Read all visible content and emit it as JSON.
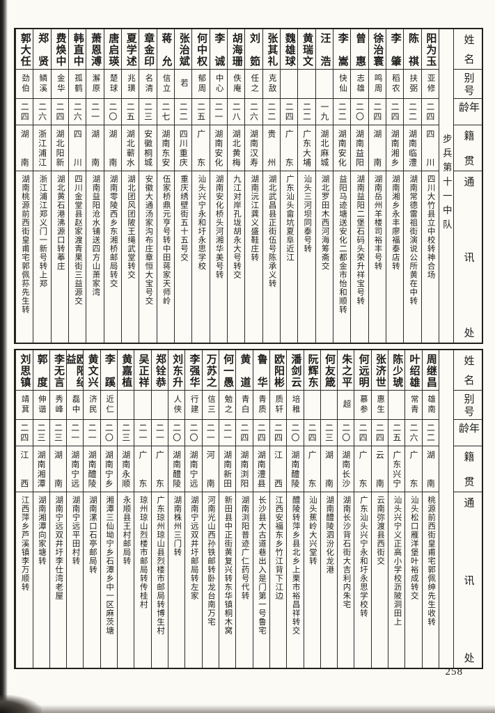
{
  "page": {
    "number": "258"
  },
  "colors": {
    "ink": "#1d1d1d",
    "paper": "#fbfaf5",
    "rule": "#2b2923"
  },
  "row_headers": {
    "name": "姓名",
    "alias": "别号",
    "age": "年龄",
    "native": "籍贯",
    "address": "通讯处"
  },
  "tables": [
    {
      "unit": "步兵第十一中队",
      "people": [
        {
          "name": "阳为玉",
          "alias": "亚修",
          "age": "二四",
          "native": "四川",
          "address": "四川大竹县立中校转神合场"
        },
        {
          "name": "陈祺",
          "alias": "扶弼",
          "age": "二二",
          "native": "湖南临澧",
          "address": "湖南常德雷祖街演说公所黄在中转"
        },
        {
          "name": "李肇",
          "alias": "稻农",
          "age": "二四",
          "native": "湖南湘乡",
          "address": "湖南湘乡永丰廖福泰店转"
        },
        {
          "name": "徐治寰",
          "alias": "鸣周",
          "age": "二四",
          "native": "湖南",
          "address": "湖南岳州羊楼司裕丰号转"
        },
        {
          "name": "曾惠",
          "alias": "志雄",
          "age": "二〇",
          "native": "湖南益阳",
          "address": "湖南益阳二堡石码头荣升祥宝号转"
        },
        {
          "name": "李嵩",
          "alias": "快仙",
          "age": "二二",
          "native": "湖南安化",
          "address": "益阳马迹塘送安化二都金市怡和顺转"
        },
        {
          "name": "汪浩",
          "alias": "",
          "age": "一九",
          "native": "湖北麻城",
          "address": "湖北罗田木西河海筹斋交"
        },
        {
          "name": "黄瑞文",
          "alias": "",
          "age": "二二",
          "native": "广东大埔",
          "address": "汕头三河坝同泰号转"
        },
        {
          "name": "魏雄球",
          "alias": "",
          "age": "二四",
          "native": "广东",
          "address": "广东汕头畲坑夏阜近江"
        },
        {
          "name": "张其礼",
          "alias": "克敌",
          "age": "二二",
          "native": "贵州",
          "address": "湖北武昌县正街伍号陈承义转"
        },
        {
          "name": "刘筎",
          "alias": "任之",
          "age": "二六",
          "native": "湖南汉寿",
          "address": "湖南沅江龚义盛鞋庄转"
        },
        {
          "name": "胡海珊",
          "alias": "佚庵",
          "age": "二八",
          "native": "湖北黄梅",
          "address": "九江对岸孔垅胡永大号转交"
        },
        {
          "name": "李诚",
          "alias": "中心",
          "age": "二一",
          "native": "湖南安化",
          "address": "湖南安化桥头河湘华美号转"
        },
        {
          "name": "何中权",
          "alias": "郁周",
          "age": "二五",
          "native": "广东",
          "address": "汕头兴宁永和圩永思学校"
        },
        {
          "name": "张治斌",
          "alias": "若",
          "age": "二二",
          "native": "四川重庆",
          "address": "重庆绣壁街五十五号交"
        },
        {
          "name": "蒋允",
          "alias": "信立",
          "age": "二七",
          "native": "湖南东安",
          "address": "伍家桥鼎元亨号转中田蒋家天师岭"
        },
        {
          "name": "章金印",
          "alias": "名清",
          "age": "二三",
          "native": "安徽桐城",
          "address": "安徽大通汤家沟布庄章恒大宝号交"
        },
        {
          "name": "夏学述",
          "alias": "兆璜",
          "age": "二五",
          "native": "湖北蕲水",
          "address": "湖北团风团陂王绳武堂转交"
        },
        {
          "name": "唐启瑛",
          "alias": "楚球",
          "age": "二〇",
          "native": "湖南",
          "address": "湖南零陵西乡东湘桥邮局转交"
        },
        {
          "name": "萧恩溥",
          "alias": "澥原",
          "age": "二一",
          "native": "湖南",
          "address": "湖南益阳沧水铺送四方山萧家湾"
        },
        {
          "name": "韩直中",
          "alias": "孤鹤",
          "age": "二六",
          "native": "四川",
          "address": "四川金堂县赵家渡青果街三益源交"
        },
        {
          "name": "费焕中",
          "alias": "金华",
          "age": "二四",
          "native": "湖北阳新",
          "address": "湖北黄石港沸源口转菶庄"
        },
        {
          "name": "郑贤",
          "alias": "鳞溪",
          "age": "二六",
          "native": "浙江浦江",
          "address": "浙江浦江郑义门一新号转上郑"
        },
        {
          "name": "郭大任",
          "alias": "劲伯",
          "age": "二四",
          "native": "湖南",
          "address": "湖南桃源前西街皇甫宅郭佩荪先生转"
        }
      ]
    },
    {
      "unit": "",
      "people": [
        {
          "name": "周继昌",
          "alias": "雄南",
          "age": "二二",
          "native": "湖南",
          "address": "桃源前西街皇甫宅郭佩绅先生收转"
        },
        {
          "name": "叶绍雄",
          "alias": "常青",
          "age": "二六",
          "native": "广东",
          "address": "汕头松口雁洋堡叶裕成转交"
        },
        {
          "name": "陈少琥",
          "alias": "",
          "age": "二五",
          "native": "广东兴宁",
          "address": "汕头兴宁义正高小学校沥陂洞田上"
        },
        {
          "name": "张济世",
          "alias": "惠生",
          "age": "二四",
          "native": "云南",
          "address": "云南弥渡县西街交"
        },
        {
          "name": "何远明",
          "alias": "慕参",
          "age": "二四",
          "native": "广东",
          "address": "广东汕头兴宁永和圩永思学校转"
        },
        {
          "name": "朱之平",
          "alias": "超",
          "age": "二〇",
          "native": "湖南长沙",
          "address": "湖南长沙背石街大吉利内朱宅"
        },
        {
          "name": "何友箴",
          "alias": "",
          "age": "二三",
          "native": "湖南",
          "address": "湖南醴陵泗汾化龙港"
        },
        {
          "name": "阮辉东",
          "alias": "",
          "age": "二四",
          "native": "广东",
          "address": "汕头蕉岭大兴堂转"
        },
        {
          "name": "潘剑云",
          "alias": "培稚",
          "age": "二〇",
          "native": "湖南醴陵",
          "address": "醴陵转萍乡县北乡上栗市裕昌祥转交"
        },
        {
          "name": "欧阳彬",
          "alias": "质轩",
          "age": "二四",
          "native": "江西",
          "address": "江西安福东乡竹江背下江边"
        },
        {
          "name": "鲁华",
          "alias": "青质",
          "age": "二四",
          "native": "湖南澧县",
          "address": "长沙县大古道巷出入是门第一号鲁宅"
        },
        {
          "name": "黄道",
          "alias": "青白",
          "age": "二四",
          "native": "湖南浏阳",
          "address": "湖南浏阳普迹广仁药号代转"
        },
        {
          "name": "何一愚",
          "alias": "勉之",
          "age": "二一",
          "native": "湖南新田",
          "address": "新田县中正街黄复兴转东华镇桐木窝"
        },
        {
          "name": "万苏之",
          "alias": "信三",
          "age": "二一",
          "native": "河南",
          "address": "河南光山西孙铁邮转卧龙台南万宅"
        },
        {
          "name": "李强华",
          "alias": "行建",
          "age": "二〇",
          "native": "湖南宁远",
          "address": "湖南宁远双井圩邮局转左家"
        },
        {
          "name": "刘东升",
          "alias": "人侠",
          "age": "二〇",
          "native": "湖南醴陵",
          "address": "湖南株州三门转"
        },
        {
          "name": "郑铨恭",
          "alias": "",
          "age": "二一",
          "native": "广东",
          "address": "广东琼州琼山县烈楼市邮局转博生村"
        },
        {
          "name": "吴正祥",
          "alias": "",
          "age": "二一",
          "native": "广东",
          "address": "琼州琼山烈楼市邮局转传桂村"
        },
        {
          "name": "黄嘉植",
          "alias": "",
          "age": "二三",
          "native": "湖南永顺",
          "address": "永顺县王村邮局转"
        },
        {
          "name": "李蹊",
          "alias": "近仁",
          "age": "二〇",
          "native": "湖南宁乡",
          "address": "湘潭三仙坳宁乡石潭乡中一区麻茨塘"
        },
        {
          "name": "黄文兴",
          "alias": "济民",
          "age": "二一",
          "native": "湖南醴陵",
          "address": "湖南漯口石亭邮局转"
        },
        {
          "name": "欧阳纪益",
          "alias": "磊中",
          "age": "二一",
          "native": "湖南宁远",
          "address": "湖南宁远平田村转"
        },
        {
          "name": "李无言",
          "alias": "秀峰",
          "age": "二三",
          "native": "湖南",
          "address": "湖南宁远双井圩李仕湾老屋"
        },
        {
          "name": "郭度",
          "alias": "伸谐",
          "age": "二三",
          "native": "湖南湘潭",
          "address": "湖南湘潭向家塘转"
        },
        {
          "name": "刘思镇",
          "alias": "靖萁",
          "age": "二四",
          "native": "江西",
          "address": "江西萍乡芦溪镇李万顺转"
        }
      ]
    }
  ]
}
